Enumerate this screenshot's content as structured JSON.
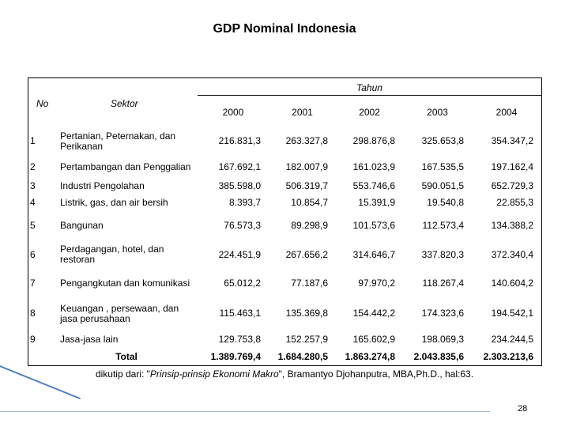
{
  "title": "GDP Nominal Indonesia",
  "table": {
    "header": {
      "no": "No",
      "sector": "Sektor",
      "group": "Tahun",
      "years": [
        "2000",
        "2001",
        "2002",
        "2003",
        "2004"
      ]
    },
    "rows": [
      {
        "no": "1",
        "sector": "Pertanian, Peternakan, dan Perikanan",
        "values": [
          "216.831,3",
          "263.327,8",
          "298.876,8",
          "325.653,8",
          "354.347,2"
        ]
      },
      {
        "no": "2",
        "sector": "Pertambangan dan Penggalian",
        "values": [
          "167.692,1",
          "182.007,9",
          "161.023,9",
          "167.535,5",
          "197.162,4"
        ]
      },
      {
        "no": "3",
        "sector": "Industri Pengolahan",
        "values": [
          "385.598,0",
          "506.319,7",
          "553.746,6",
          "590.051,5",
          "652.729,3"
        ]
      },
      {
        "no": "4",
        "sector": "Listrik, gas, dan air bersih",
        "values": [
          "8.393,7",
          "10.854,7",
          "15.391,9",
          "19.540,8",
          "22.855,3"
        ]
      },
      {
        "no": "5",
        "sector": "Bangunan",
        "values": [
          "76.573,3",
          "89.298,9",
          "101.573,6",
          "112.573,4",
          "134.388,2"
        ]
      },
      {
        "no": "6",
        "sector": "Perdagangan, hotel, dan restoran",
        "values": [
          "224.451,9",
          "267.656,2",
          "314.646,7",
          "337.820,3",
          "372.340,4"
        ]
      },
      {
        "no": "7",
        "sector": "Pengangkutan dan komunikasi",
        "values": [
          "65.012,2",
          "77.187,6",
          "97.970,2",
          "118.267,4",
          "140.604,2"
        ]
      },
      {
        "no": "8",
        "sector": "Keuangan , persewaan, dan jasa perusahaan",
        "values": [
          "115.463,1",
          "135.369,8",
          "154.442,2",
          "174.323,6",
          "194.542,1"
        ]
      },
      {
        "no": "9",
        "sector": "Jasa-jasa lain",
        "values": [
          "129.753,8",
          "152.257,9",
          "165.602,9",
          "198.069,3",
          "234.244,5"
        ]
      }
    ],
    "total": {
      "label": "Total",
      "values": [
        "1.389.769,4",
        "1.684.280,5",
        "1.863.274,8",
        "2.043.835,6",
        "2.303.213,6"
      ]
    }
  },
  "footnote": {
    "before": "dikutip dari: \"",
    "italic": "Prinsip-prinsip Ekonomi Makro",
    "after": "\", Bramantyo Djohanputra, MBA,Ph.D., hal:63."
  },
  "page_number": "28"
}
